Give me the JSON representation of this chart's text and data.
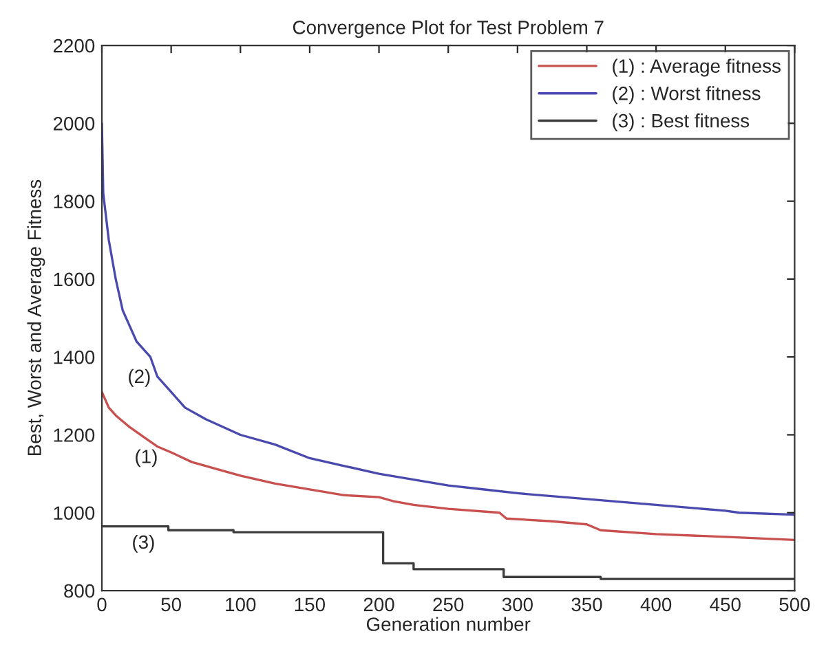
{
  "chart_data": {
    "type": "line",
    "title": "Convergence Plot for Test Problem 7",
    "xlabel": "Generation number",
    "ylabel": "Best, Worst and Average Fitness",
    "xlim": [
      0,
      500
    ],
    "xticks": [
      0,
      50,
      100,
      150,
      200,
      250,
      300,
      350,
      400,
      450,
      500
    ],
    "ylim": [
      800,
      2200
    ],
    "yticks": [
      800,
      1000,
      1200,
      1400,
      1600,
      1800,
      2000,
      2200
    ],
    "grid": false,
    "legend": "top right",
    "marker": "none",
    "line_style": "solid",
    "series": [
      {
        "name": "(1) : Average fitness",
        "color": "#c8504f",
        "x": [
          0,
          5,
          10,
          20,
          30,
          40,
          50,
          65,
          80,
          100,
          125,
          150,
          175,
          200,
          210,
          225,
          250,
          287,
          292,
          325,
          350,
          360,
          400,
          450,
          500
        ],
        "values": [
          1310,
          1270,
          1250,
          1220,
          1195,
          1170,
          1155,
          1130,
          1115,
          1095,
          1075,
          1060,
          1045,
          1040,
          1030,
          1020,
          1010,
          1000,
          985,
          978,
          970,
          955,
          945,
          938,
          930
        ]
      },
      {
        "name": "(2) : Worst fitness",
        "color": "#4a4aae",
        "x": [
          0,
          1,
          5,
          10,
          15,
          20,
          25,
          30,
          35,
          40,
          50,
          60,
          75,
          100,
          125,
          150,
          175,
          200,
          225,
          250,
          275,
          300,
          350,
          400,
          450,
          460,
          500
        ],
        "values": [
          2000,
          1820,
          1700,
          1600,
          1520,
          1480,
          1440,
          1420,
          1400,
          1350,
          1310,
          1270,
          1240,
          1200,
          1175,
          1140,
          1120,
          1100,
          1085,
          1070,
          1060,
          1050,
          1035,
          1020,
          1005,
          1000,
          995
        ]
      },
      {
        "name": "(3) : Best fitness",
        "color": "#3c3c3c",
        "x": [
          0,
          48,
          48,
          95,
          95,
          203,
          203,
          225,
          225,
          290,
          290,
          360,
          360,
          500
        ],
        "values": [
          965,
          965,
          955,
          955,
          950,
          950,
          870,
          870,
          855,
          855,
          835,
          835,
          830,
          830
        ]
      }
    ],
    "annotations": [
      "(2)",
      "(1)",
      "(3)"
    ]
  }
}
